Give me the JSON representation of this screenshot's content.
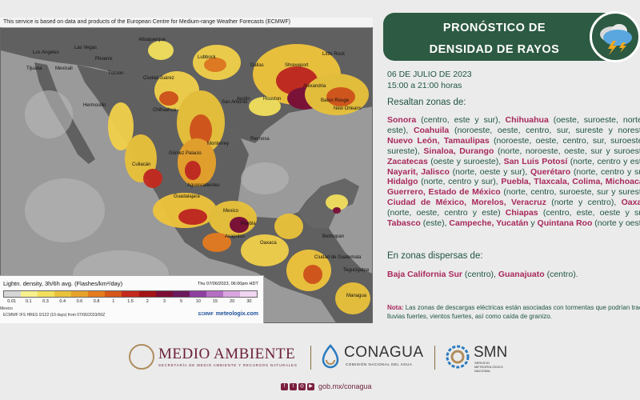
{
  "map": {
    "credit": "This service is based on data and products of the European Centre for Medium-range Weather Forecasts (ECMWF)",
    "cities": [
      {
        "name": "Albuquerque"
      },
      {
        "name": "Las Vegas"
      },
      {
        "name": "Los Angeles"
      },
      {
        "name": "Tijuana"
      },
      {
        "name": "Mexicali"
      },
      {
        "name": "Phoenix"
      },
      {
        "name": "Tucson"
      },
      {
        "name": "Lubbock"
      },
      {
        "name": "Ciudad Juárez"
      },
      {
        "name": "Dallas"
      },
      {
        "name": "Shreveport"
      },
      {
        "name": "Little Rock"
      },
      {
        "name": "Austin"
      },
      {
        "name": "Houston"
      },
      {
        "name": "Alexandria"
      },
      {
        "name": "Baton Rouge"
      },
      {
        "name": "New Orleans"
      },
      {
        "name": "Hermosillo"
      },
      {
        "name": "Chihuahua"
      },
      {
        "name": "San Antonio"
      },
      {
        "name": "Monterrey"
      },
      {
        "name": "Reynosa"
      },
      {
        "name": "Culiacán"
      },
      {
        "name": "Gómez Palacio"
      },
      {
        "name": "Aguascalientes"
      },
      {
        "name": "Guadalajara"
      },
      {
        "name": "Mexico"
      },
      {
        "name": "Puebla"
      },
      {
        "name": "Acapulco"
      },
      {
        "name": "Oaxaca"
      },
      {
        "name": "Belmopan"
      },
      {
        "name": "Ciudad de Guatemala"
      },
      {
        "name": "Tegucigalpa"
      },
      {
        "name": "Managua"
      }
    ]
  },
  "legend": {
    "title": "Lightn. density, 3h/6h avg. (Flashes/km²/day)",
    "valid": "Thu 07/06/2023, 06:00pm HDT",
    "ticks": [
      "0.01",
      "0.1",
      "0.3",
      "0.4",
      "0.6",
      "0.8",
      "1",
      "1.5",
      "2",
      "3",
      "5",
      "10",
      "15",
      "20",
      "30"
    ],
    "location": "Mexico",
    "source": "ECMWF IFS HRES 0/122 (10 days)  from  07/06/2023/00Z",
    "ecmwf": "ECMWF",
    "meteologix": "meteologix.com",
    "colors": [
      "#d6d6d6",
      "#f7f08c",
      "#f2e05c",
      "#e9c13a",
      "#e7a22b",
      "#e37b1f",
      "#d4561a",
      "#c42a1e",
      "#a31414",
      "#7c0e36",
      "#6b1a5c",
      "#8e3fa0",
      "#b46fc2",
      "#d9a6e0",
      "#f0d6f2"
    ]
  },
  "header": {
    "title_line1": "PRONÓSTICO DE",
    "title_line2": "DENSIDAD DE RAYOS",
    "date": "06 DE JULIO DE 2023",
    "hours": "15:00 a 21:00 horas",
    "lead": "Resaltan zonas de:"
  },
  "body_items": [
    {
      "state": "Sonora",
      "detail": "(centro, este y sur),"
    },
    {
      "state": "Chihuahua",
      "detail": "(oeste, suroeste, norte y este),"
    },
    {
      "state": "Coahuila",
      "detail": "(noroeste, oeste, centro, sur, sureste y noreste),"
    },
    {
      "state": "Nuevo León, Tamaulipas",
      "detail": "(noroeste, oeste, centro, sur, suroeste y sureste),"
    },
    {
      "state": "Sinaloa, Durango",
      "detail": "(norte, noroeste, oeste, sur y suroeste),"
    },
    {
      "state": "Zacatecas",
      "detail": "(oeste y suroeste),"
    },
    {
      "state": "San Luis Potosí",
      "detail": "(norte, centro y este),"
    },
    {
      "state": "Nayarit, Jalisco",
      "detail": "(norte, oeste y sur),"
    },
    {
      "state": "Querétaro",
      "detail": "(norte, centro y sur),"
    },
    {
      "state": "Hidalgo",
      "detail": "(norte, centro y sur),"
    },
    {
      "state": "Puebla, Tlaxcala, Colima, Michoacán, Guerrero, Estado de México",
      "detail": "(norte, centro, suroeste, sur y sureste),"
    },
    {
      "state": "Ciudad de México, Morelos, Veracruz",
      "detail": "(norte y centro),"
    },
    {
      "state": "Oaxaca",
      "detail": "(norte, oeste, centro y este)"
    },
    {
      "state": "Chiapas",
      "detail": "(centro, este, oeste y sur),"
    },
    {
      "state": "Tabasco",
      "detail": "(este),"
    },
    {
      "state": "Campeche, Yucatán",
      "detail": "y"
    },
    {
      "state": "Quintana Roo",
      "detail": "(norte y oeste)."
    }
  ],
  "dispersed": {
    "lead": "En zonas dispersas de:",
    "items": [
      {
        "state": "Baja California Sur",
        "detail": "(centro),"
      },
      {
        "state": "Guanajuato",
        "detail": "(centro)."
      }
    ]
  },
  "note": {
    "label": "Nota:",
    "text": "Las zonas de descargas eléctricas están asociadas con tormentas que podrían traer lluvias fuertes, vientos fuertes, así como caída de granizo."
  },
  "footer": {
    "medio_ambiente": "MEDIO AMBIENTE",
    "medio_ambiente_sub": "SECRETARÍA DE MEDIO AMBIENTE Y RECURSOS NATURALES",
    "conagua": "CONAGUA",
    "conagua_sub": "COMISIÓN NACIONAL DEL AGUA",
    "smn": "SMN",
    "smn_sub": "SERVICIO METEOROLÓGICO NACIONAL",
    "social_icons": [
      "facebook-icon",
      "twitter-icon",
      "instagram-icon",
      "youtube-icon"
    ],
    "url": "gob.mx/conagua"
  }
}
